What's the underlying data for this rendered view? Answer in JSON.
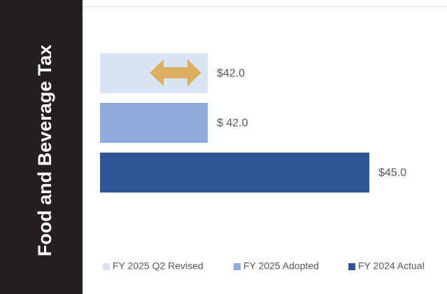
{
  "chart_data": {
    "type": "bar",
    "orientation": "horizontal",
    "title": "Food and Beverage Tax",
    "xlim": [
      40,
      46
    ],
    "legend": "bottom",
    "series": [
      {
        "name": "FY 2025 Q2 Revised",
        "color": "#dae3f3",
        "values": [
          42.0
        ],
        "value_labels": [
          "$42.0"
        ]
      },
      {
        "name": "FY 2025 Adopted",
        "color": "#8faadc",
        "values": [
          42.0
        ],
        "value_labels": [
          "$ 42.0"
        ]
      },
      {
        "name": "FY 2024 Actual",
        "color": "#2f5597",
        "values": [
          45.0
        ],
        "value_labels": [
          "$45.0"
        ]
      }
    ]
  }
}
